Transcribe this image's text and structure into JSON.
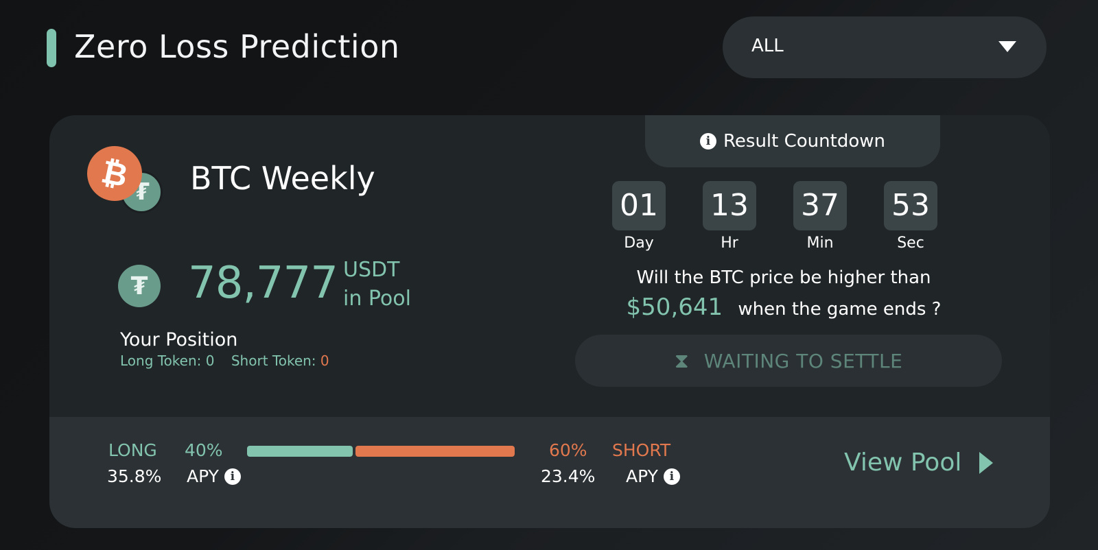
{
  "header": {
    "title": "Zero Loss Prediction",
    "filter": {
      "selected": "ALL"
    }
  },
  "game": {
    "title": "BTC Weekly",
    "icons": {
      "primary": "bitcoin-icon",
      "secondary": "tether-icon",
      "pool": "tether-icon"
    },
    "pool": {
      "amount": "78,777",
      "unit_line1": "USDT",
      "unit_line2": "in Pool"
    },
    "position": {
      "title": "Your Position",
      "long_label": "Long Token:",
      "long_value": "0",
      "short_label": "Short Token:",
      "short_value": "0"
    }
  },
  "countdown": {
    "label": "Result Countdown",
    "units": [
      {
        "value": "01",
        "label": "Day"
      },
      {
        "value": "13",
        "label": "Hr"
      },
      {
        "value": "37",
        "label": "Min"
      },
      {
        "value": "53",
        "label": "Sec"
      }
    ]
  },
  "question": {
    "line1": "Will the BTC price be higher than",
    "price": "$50,641",
    "line2_suffix": "when the game ends ?"
  },
  "status_button": {
    "label": "WAITING TO SETTLE"
  },
  "split": {
    "long_label": "LONG",
    "long_pct": "40%",
    "long_fraction": 0.4,
    "short_pct": "60%",
    "short_fraction": 0.6,
    "short_label": "SHORT",
    "long_apy": "35.8%",
    "short_apy": "23.4%",
    "apy_label": "APY"
  },
  "view_pool": {
    "label": "View Pool"
  },
  "colors": {
    "accent": "#82c4ae",
    "short": "#e2784e",
    "bitcoin": "#e2784e",
    "tether": "#6a9c8c"
  }
}
